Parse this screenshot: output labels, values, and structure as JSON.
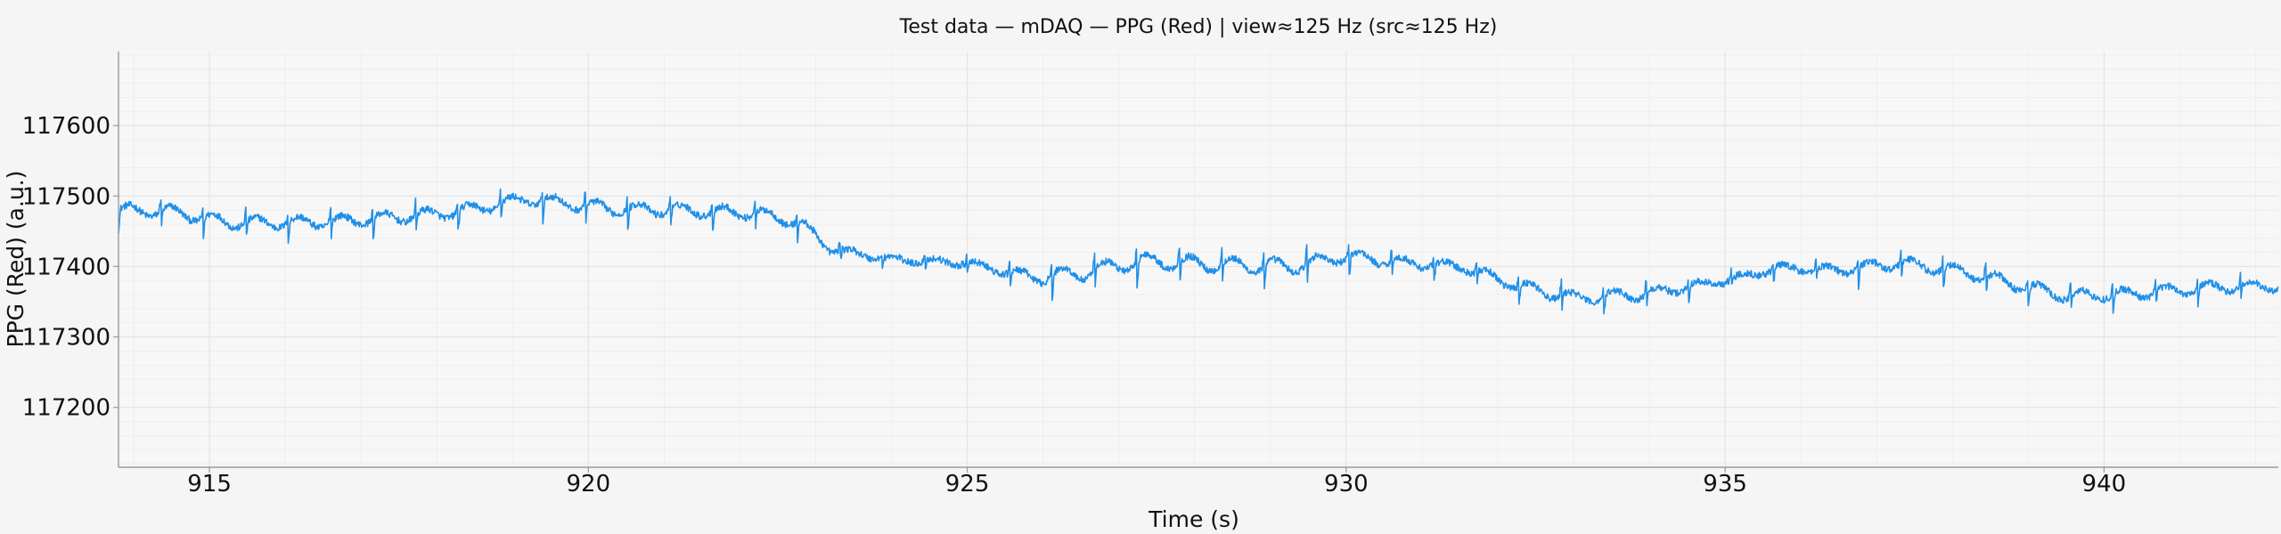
{
  "chart_data": {
    "type": "line",
    "title": "Test data — mDAQ — PPG (Red) | view≈125 Hz (src≈125 Hz)",
    "xlabel": "Time (s)",
    "ylabel": "PPG (Red) (a.u.)",
    "xlim": [
      913.8,
      942.3
    ],
    "ylim": [
      117115,
      117705
    ],
    "xticks": [
      915,
      920,
      925,
      930,
      935,
      940
    ],
    "yticks": [
      117200,
      117300,
      117400,
      117500,
      117600
    ],
    "x_minor_step": 1,
    "y_minor_step": 20,
    "grid": true,
    "legend": "none",
    "sample_rate_hz": 125,
    "line_color": "#1f8fe8",
    "series": [
      {
        "baseline": [
          [
            913.8,
            117480
          ],
          [
            914.5,
            117478
          ],
          [
            915.3,
            117462
          ],
          [
            916.5,
            117463
          ],
          [
            917.5,
            117470
          ],
          [
            918.3,
            117478
          ],
          [
            919.2,
            117496
          ],
          [
            920.3,
            117482
          ],
          [
            921.2,
            117480
          ],
          [
            922.2,
            117476
          ],
          [
            922.8,
            117462
          ],
          [
            923.2,
            117425
          ],
          [
            924.0,
            117410
          ],
          [
            925.0,
            117405
          ],
          [
            925.8,
            117385
          ],
          [
            926.5,
            117390
          ],
          [
            927.3,
            117408
          ],
          [
            928.5,
            117402
          ],
          [
            929.3,
            117400
          ],
          [
            930.0,
            117415
          ],
          [
            930.8,
            117405
          ],
          [
            931.5,
            117400
          ],
          [
            932.3,
            117372
          ],
          [
            933.0,
            117355
          ],
          [
            934.0,
            117362
          ],
          [
            935.0,
            117380
          ],
          [
            935.7,
            117398
          ],
          [
            936.5,
            117395
          ],
          [
            937.3,
            117405
          ],
          [
            938.2,
            117392
          ],
          [
            938.7,
            117378
          ],
          [
            939.5,
            117358
          ],
          [
            940.5,
            117362
          ],
          [
            941.3,
            117370
          ],
          [
            942.3,
            117372
          ]
        ],
        "beat_amplitude": [
          [
            913.8,
            22
          ],
          [
            922.5,
            22
          ],
          [
            923.5,
            12
          ],
          [
            925.3,
            12
          ],
          [
            926.0,
            28
          ],
          [
            929.0,
            28
          ],
          [
            931.5,
            15
          ],
          [
            932.3,
            22
          ],
          [
            934.0,
            22
          ],
          [
            934.8,
            12
          ],
          [
            936.0,
            15
          ],
          [
            937.0,
            22
          ],
          [
            939.0,
            22
          ],
          [
            942.3,
            18
          ]
        ]
      }
    ]
  }
}
